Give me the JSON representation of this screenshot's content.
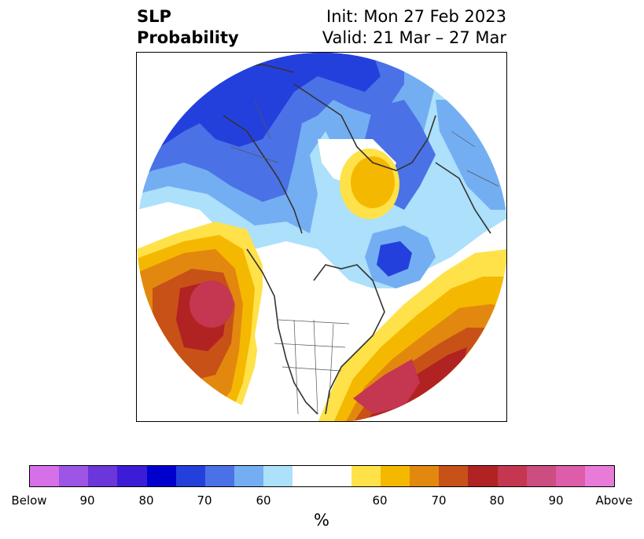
{
  "title": {
    "variable": "SLP",
    "product": "Probability",
    "init": "Init: Mon 27 Feb 2023",
    "valid": "Valid: 21 Mar – 27 Mar"
  },
  "colorbar": {
    "colors": [
      "#d670e8",
      "#9c55e4",
      "#6b36da",
      "#3c1cd6",
      "#0000cd",
      "#2440dc",
      "#4a72e6",
      "#74aef2",
      "#ace0fb",
      "#ffffff",
      "#ffffff",
      "#ffe24a",
      "#f5b800",
      "#e2880f",
      "#c85118",
      "#b12222",
      "#c53650",
      "#cc4d80",
      "#de5dab",
      "#e87ad8"
    ],
    "tick_labels": [
      "Below",
      "90",
      "80",
      "70",
      "60",
      "60",
      "70",
      "80",
      "90",
      "Above"
    ],
    "unit": "%"
  }
}
